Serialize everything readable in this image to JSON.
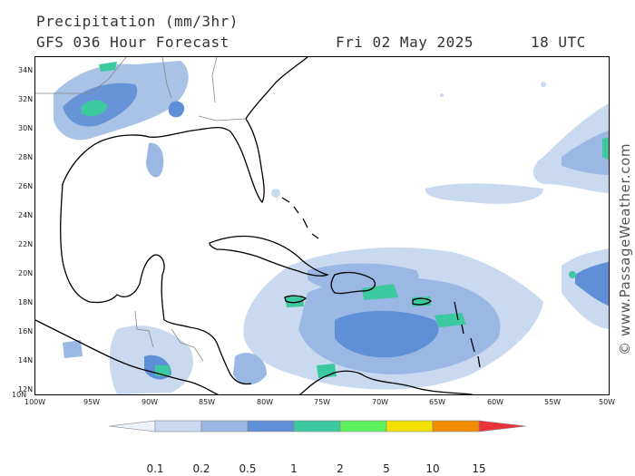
{
  "header": {
    "title": "Precipitation (mm/3hr)",
    "model": "GFS 036 Hour Forecast",
    "date": "Fri 02 May 2025",
    "time": "18 UTC"
  },
  "map": {
    "lon_range": [
      -100,
      -50
    ],
    "lat_range": [
      10,
      35
    ],
    "lat_labels": [
      "34N",
      "32N",
      "30N",
      "28N",
      "26N",
      "24N",
      "22N",
      "20N",
      "18N",
      "16N",
      "14N",
      "12N",
      "10N"
    ],
    "lon_labels": [
      "100W",
      "95W",
      "90W",
      "85W",
      "80W",
      "75W",
      "70W",
      "65W",
      "60W",
      "55W",
      "50W"
    ],
    "land_color": "#ffffff",
    "coastline_color": "#000000",
    "border_color": "#888888"
  },
  "legend": {
    "labels": [
      "0.1",
      "0.2",
      "0.5",
      "1",
      "2",
      "5",
      "10",
      "15"
    ],
    "colors": [
      "#eef3fb",
      "#c9d9f0",
      "#9ab8e3",
      "#5f8fd6",
      "#3cc9a0",
      "#5ef25e",
      "#f2e000",
      "#f28c00",
      "#e8323c"
    ]
  },
  "watermark": "© www.PassageWeather.com"
}
